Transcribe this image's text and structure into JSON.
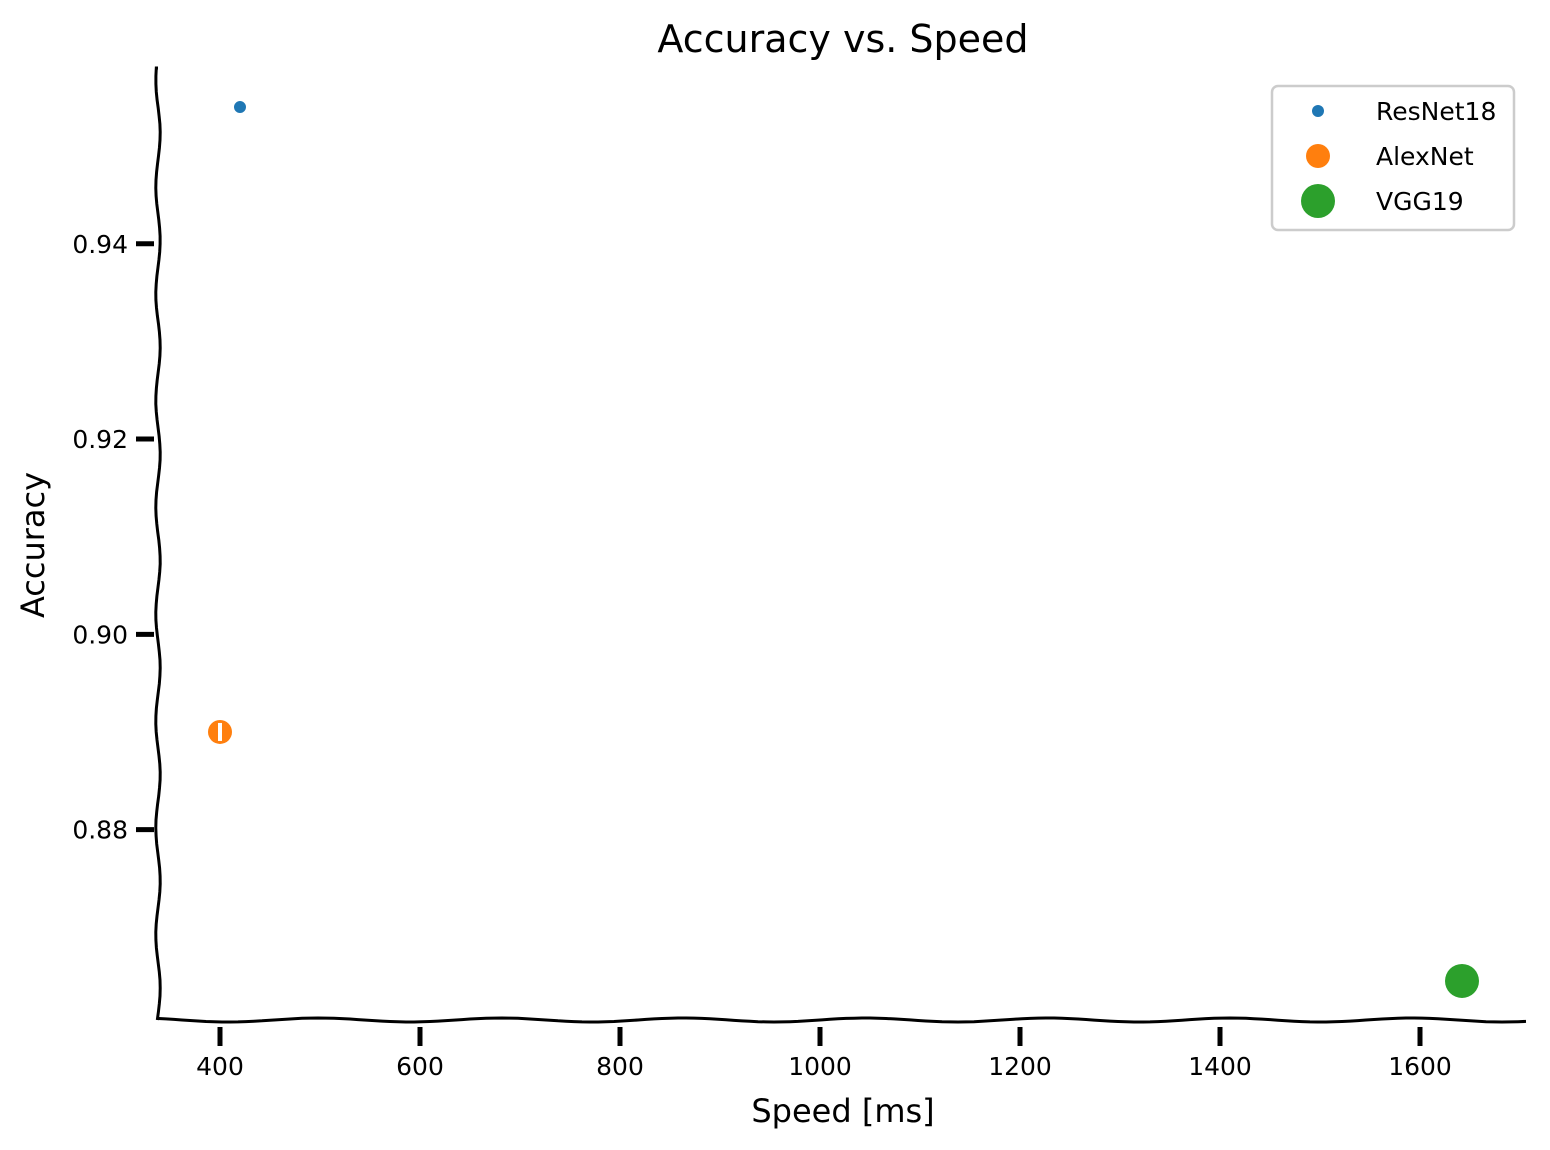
{
  "chart_data": {
    "type": "scatter",
    "title": "Accuracy vs. Speed",
    "xlabel": "Speed [ms]",
    "ylabel": "Accuracy",
    "xlim": [
      338,
      1710
    ],
    "ylim": [
      0.8605,
      0.958
    ],
    "xticks": [
      400,
      600,
      800,
      1000,
      1200,
      1400,
      1600
    ],
    "xtick_labels": [
      "400",
      "600",
      "800",
      "1000",
      "1200",
      "1400",
      "1600"
    ],
    "yticks": [
      0.88,
      0.9,
      0.92,
      0.94
    ],
    "ytick_labels": [
      "0.88",
      "0.90",
      "0.92",
      "0.94"
    ],
    "grid": false,
    "legend_position": "top-right",
    "series": [
      {
        "name": "ResNet18",
        "x": [
          420
        ],
        "y": [
          0.954
        ],
        "color": "#1f77b4",
        "marker_size": "small"
      },
      {
        "name": "AlexNet",
        "x": [
          400
        ],
        "y": [
          0.89
        ],
        "color": "#ff7f0e",
        "marker_size": "medium"
      },
      {
        "name": "VGG19",
        "x": [
          1642
        ],
        "y": [
          0.8645
        ],
        "color": "#2ca02c",
        "marker_size": "large"
      }
    ]
  }
}
